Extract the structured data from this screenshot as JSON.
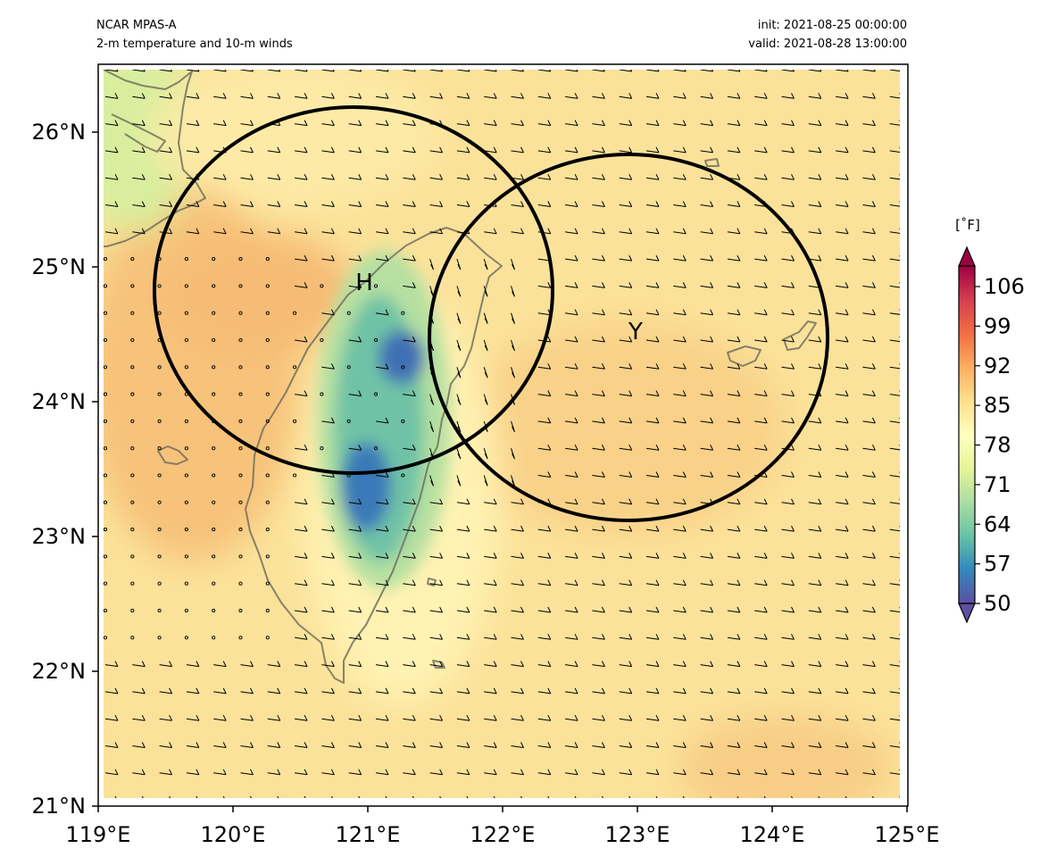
{
  "header": {
    "model": "NCAR MPAS-A",
    "product": "2-m temperature and 10-m winds",
    "init": "init: 2021-08-25 00:00:00",
    "valid": "valid: 2021-08-28 13:00:00"
  },
  "map": {
    "lon_range": [
      119,
      125
    ],
    "lat_range": [
      21,
      26.5
    ],
    "x_ticks": [
      "119°E",
      "120°E",
      "121°E",
      "122°E",
      "123°E",
      "124°E",
      "125°E"
    ],
    "y_ticks": [
      "21°N",
      "22°N",
      "23°N",
      "24°N",
      "25°N",
      "26°N"
    ],
    "background_color": "#fbe29a",
    "markers": [
      {
        "label": "H",
        "lon": 120.97,
        "lat": 24.85
      },
      {
        "label": "Y",
        "lon": 123.02,
        "lat": 24.5
      }
    ],
    "range_rings": [
      {
        "center_lon": 120.97,
        "center_lat": 24.82,
        "radius_deg": 1.37
      },
      {
        "center_lon": 122.96,
        "center_lat": 24.45,
        "radius_deg": 1.35
      }
    ]
  },
  "colorbar": {
    "unit": "[˚F]",
    "min": 50,
    "max": 110,
    "tick_labels": [
      "50",
      "57",
      "64",
      "71",
      "78",
      "85",
      "92",
      "99",
      "106"
    ],
    "tick_values": [
      50,
      57,
      64,
      71,
      78,
      85,
      92,
      99,
      106
    ],
    "colors": [
      "#5e4fa2",
      "#3288bd",
      "#66c2a5",
      "#abdda4",
      "#e6f598",
      "#ffffbf",
      "#fee08b",
      "#fdae61",
      "#f46d43",
      "#d53e4f",
      "#9e0142"
    ]
  }
}
